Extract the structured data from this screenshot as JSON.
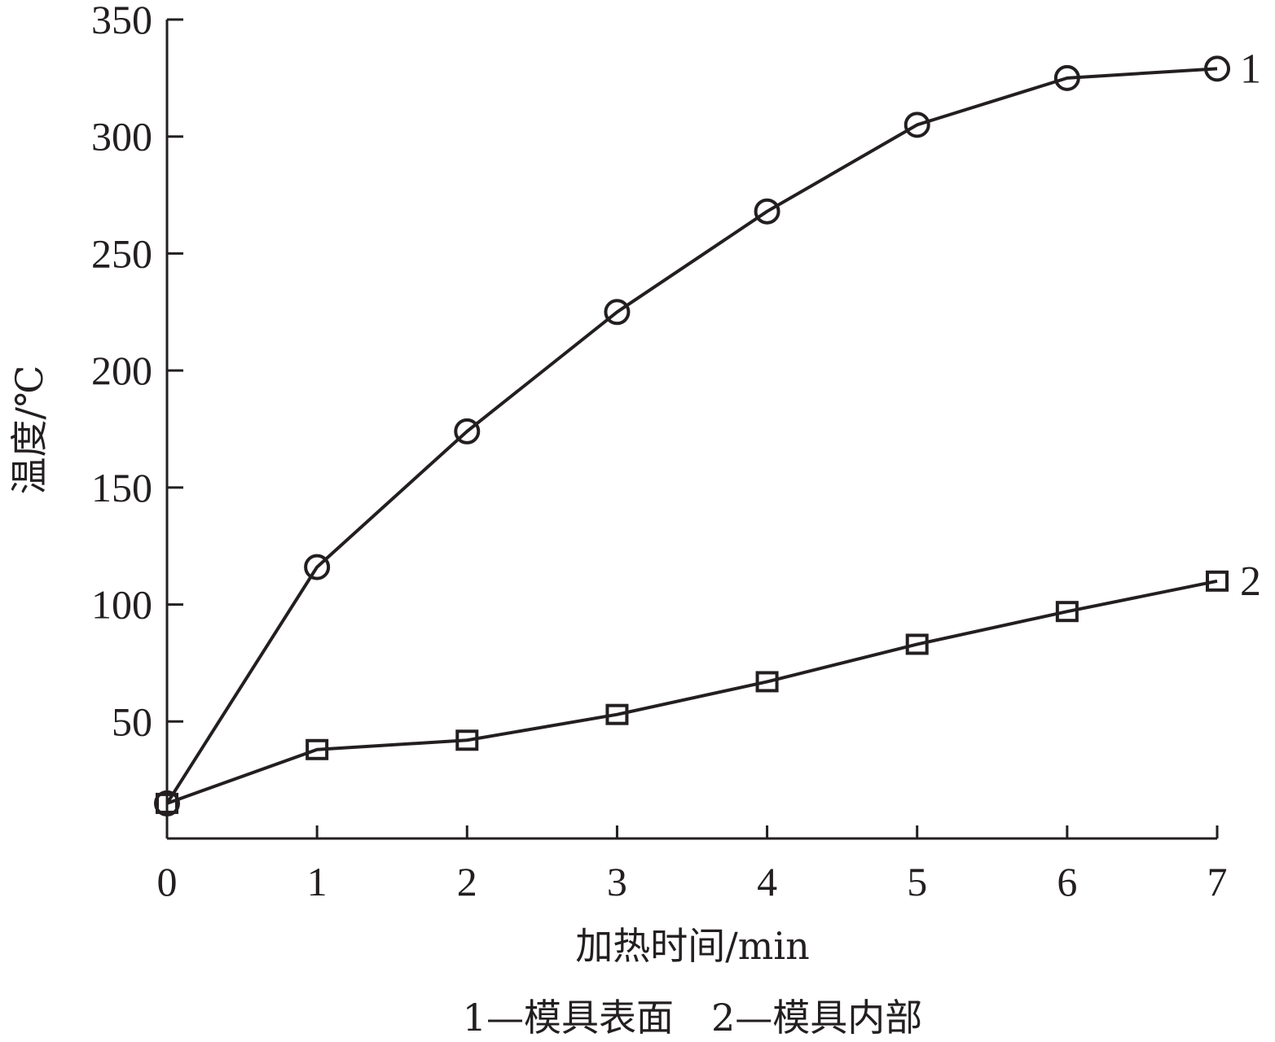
{
  "chart_data": {
    "type": "line",
    "xlabel": "加热时间/min",
    "ylabel": "温度/℃",
    "caption": "1—模具表面　2—模具内部",
    "x": [
      0,
      1,
      2,
      3,
      4,
      5,
      6,
      7
    ],
    "xlim": [
      0,
      7
    ],
    "ylim": [
      0,
      350
    ],
    "x_ticks": [
      0,
      1,
      2,
      3,
      4,
      5,
      6,
      7
    ],
    "y_ticks": [
      50,
      100,
      150,
      200,
      250,
      300,
      350
    ],
    "grid": false,
    "legend": "none",
    "series": [
      {
        "label": "1",
        "marker": "circle",
        "values": [
          15,
          116,
          174,
          225,
          268,
          305,
          325,
          329
        ]
      },
      {
        "label": "2",
        "marker": "square",
        "values": [
          15,
          38,
          42,
          53,
          67,
          83,
          97,
          110
        ]
      }
    ],
    "colors": {
      "line": "#231f20"
    }
  }
}
